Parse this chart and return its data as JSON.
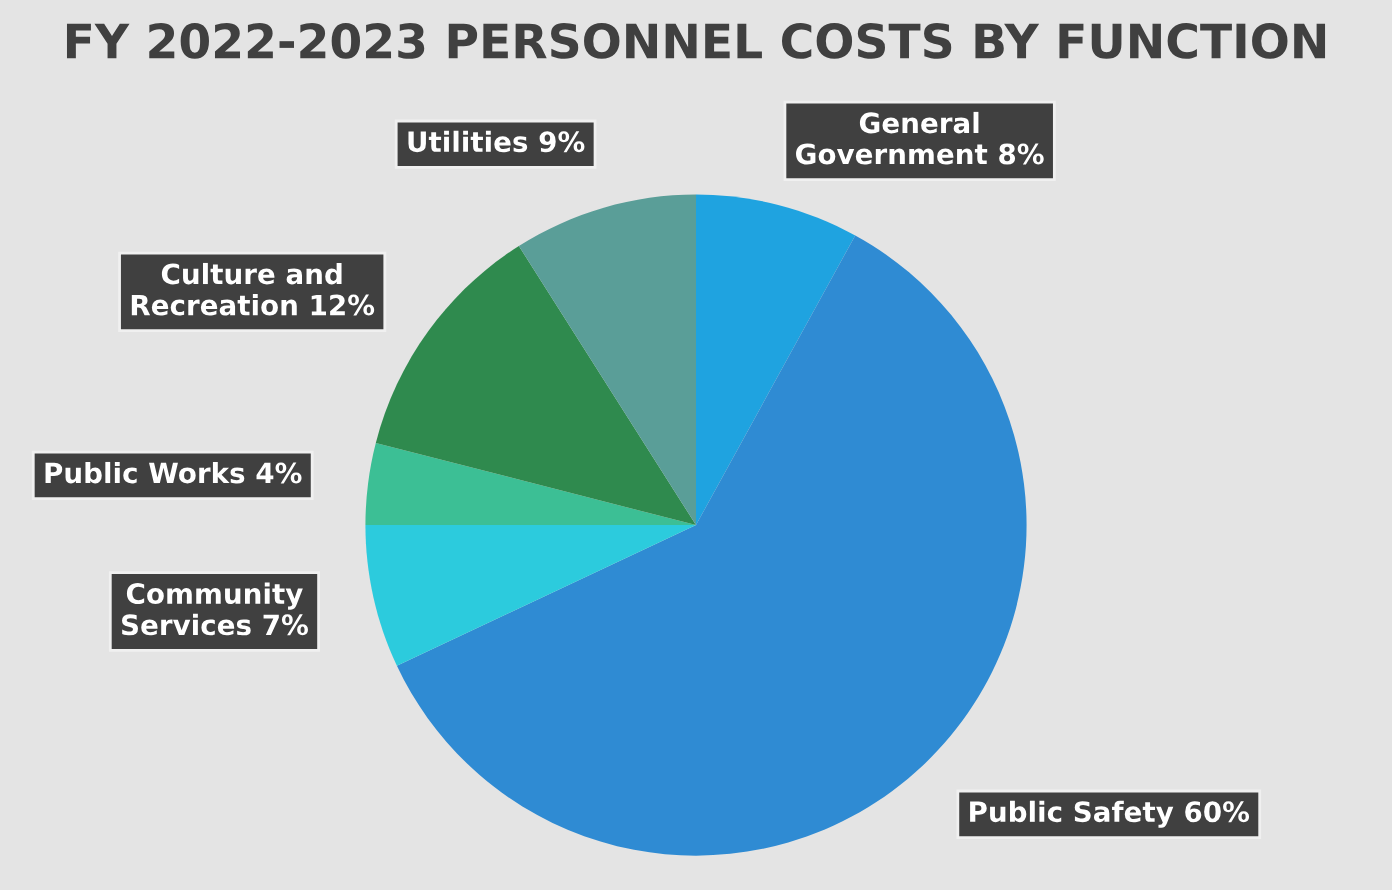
{
  "chart_data": {
    "type": "pie",
    "title": "FY 2022-2023 PERSONNEL COSTS BY FUNCTION",
    "categories": [
      "General Government",
      "Public Safety",
      "Community Services",
      "Public Works",
      "Culture and Recreation",
      "Utilities"
    ],
    "values": [
      8,
      60,
      7,
      4,
      12,
      9
    ],
    "value_labels": [
      "8%",
      "60%",
      "7%",
      "4%",
      "12%",
      "9%"
    ],
    "colors": [
      "#1fa3e0",
      "#2f8bd3",
      "#2ccbdd",
      "#3cbf95",
      "#2f8a4e",
      "#5a9e98"
    ],
    "legend": false
  }
}
